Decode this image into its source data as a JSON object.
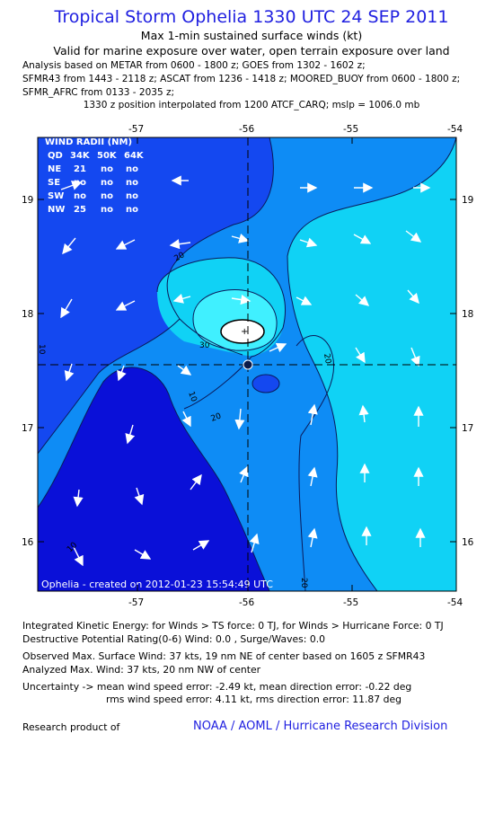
{
  "header": {
    "title": "Tropical Storm Ophelia 1330 UTC 24 SEP 2011",
    "subtitle1": "Max 1-min sustained surface winds (kt)",
    "subtitle2": "Valid for marine exposure over water, open terrain exposure over land",
    "analysis_lines": [
      "Analysis based on METAR from 0600 - 1800 z; GOES from 1302 - 1602 z;",
      "SFMR43 from 1443 - 2118 z; ASCAT from 1236 - 1418 z; MOORED_BUOY from 0600 - 1800 z;",
      "SFMR_AFRC from 0133 - 2035 z;"
    ],
    "position_note": "1330 z position interpolated from 1200 ATCF_CARQ; mslp = 1006.0 mb"
  },
  "map": {
    "lon_ticks": [
      "-57",
      "-56",
      "-55",
      "-54"
    ],
    "lat_ticks": [
      "19",
      "18",
      "17",
      "16"
    ],
    "contour_labels": [
      "20",
      "30",
      "10",
      "20",
      "20",
      "10",
      "20",
      "10"
    ],
    "footer": "Ophelia - created on 2012-01-23 15:54:49 UTC",
    "colors": {
      "deep": "#0a10d8",
      "mid": "#1448f0",
      "light": "#0e8cf5",
      "cyan": "#10d2f5",
      "center": "#40f0ff",
      "core": "#ffffff",
      "axis_bg": "#0e8cf5"
    },
    "wind_radii_table": {
      "title": "WIND RADII (NM)",
      "header": [
        "QD",
        "34K",
        "50K",
        "64K"
      ],
      "rows": [
        [
          "NE",
          "21",
          "no",
          "no"
        ],
        [
          "SE",
          "no",
          "no",
          "no"
        ],
        [
          "SW",
          "no",
          "no",
          "no"
        ],
        [
          "NW",
          "25",
          "no",
          "no"
        ]
      ]
    }
  },
  "stats": {
    "ike": "Integrated Kinetic Energy:  for Winds > TS force: 0 TJ,  for Winds > Hurricane Force: 0 TJ",
    "dpr": "Destructive Potential Rating(0-6)   Wind: 0.0 , Surge/Waves: 0.0",
    "obs_max": "Observed Max. Surface Wind: 37 kts, 19 nm NE of center based on 1605 z SFMR43",
    "analyzed_max": "Analyzed Max. Wind: 37 kts, 20 nm NW of center",
    "uncertainty1": "Uncertainty -> mean wind speed error:  -2.49 kt,   mean direction error:  -0.22 deg",
    "uncertainty2": "rms wind speed error:  4.11 kt,   rms direction error: 11.87 deg"
  },
  "credit": {
    "label": "Research product of",
    "org": "NOAA / AOML / Hurricane Research Division"
  }
}
